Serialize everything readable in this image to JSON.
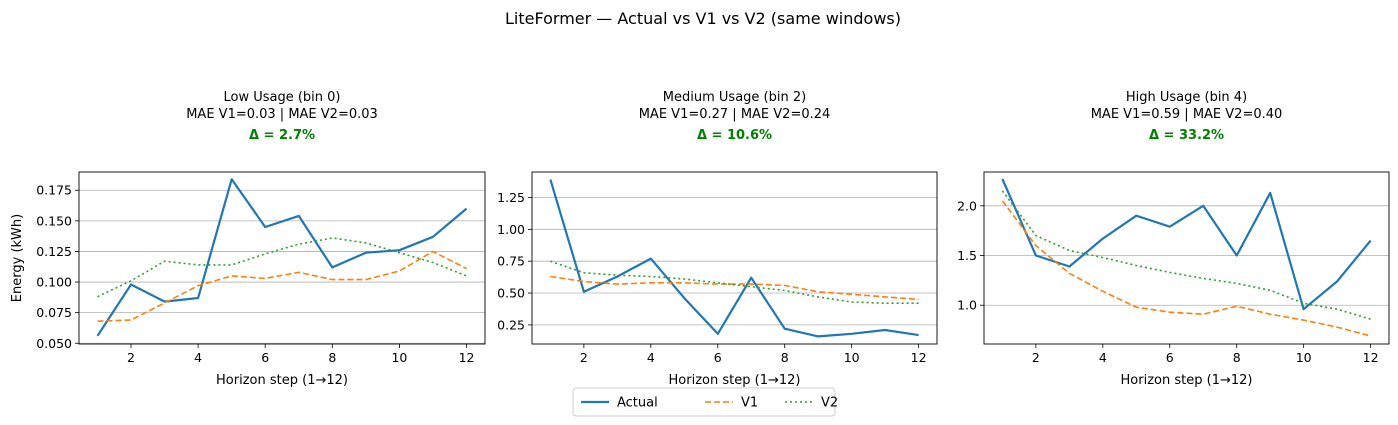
{
  "figure": {
    "suptitle": "LiteFormer — Actual vs V1 vs V2 (same windows)",
    "legend": {
      "placement": "bottom-center",
      "entries": [
        {
          "name": "Actual",
          "color": "#1f77b4",
          "dash": "solid"
        },
        {
          "name": "V1",
          "color": "#ff7f0e",
          "dash": "dashed"
        },
        {
          "name": "V2",
          "color": "#2ca02c",
          "dash": "dotted"
        }
      ]
    }
  },
  "chart_data": [
    {
      "type": "line",
      "title_line1": "Low Usage (bin 0)",
      "title_line2": "MAE V1=0.03 | MAE V2=0.03",
      "delta_label": "Δ = 2.7%",
      "delta_color": "#008000",
      "xlabel": "Horizon step (1→12)",
      "ylabel": "Energy (kWh)",
      "xlim": [
        0.45,
        12.55
      ],
      "ylim": [
        0.0494,
        0.1899
      ],
      "xticks": [
        2,
        4,
        6,
        8,
        10,
        12
      ],
      "yticks": [
        0.05,
        0.075,
        0.1,
        0.125,
        0.15,
        0.175
      ],
      "ytick_labels": [
        "0.050",
        "0.075",
        "0.100",
        "0.125",
        "0.150",
        "0.175"
      ],
      "grid": "y",
      "x": [
        1,
        2,
        3,
        4,
        5,
        6,
        7,
        8,
        9,
        10,
        11,
        12
      ],
      "series": [
        {
          "name": "Actual",
          "values": [
            0.056,
            0.098,
            0.084,
            0.087,
            0.184,
            0.145,
            0.154,
            0.112,
            0.124,
            0.126,
            0.137,
            0.16
          ]
        },
        {
          "name": "V1",
          "values": [
            0.068,
            0.069,
            0.083,
            0.097,
            0.105,
            0.103,
            0.108,
            0.102,
            0.102,
            0.109,
            0.125,
            0.111
          ]
        },
        {
          "name": "V2",
          "values": [
            0.088,
            0.101,
            0.117,
            0.114,
            0.114,
            0.123,
            0.131,
            0.136,
            0.132,
            0.124,
            0.116,
            0.105
          ]
        }
      ]
    },
    {
      "type": "line",
      "title_line1": "Medium Usage (bin 2)",
      "title_line2": "MAE V1=0.27 | MAE V2=0.24",
      "delta_label": "Δ = 10.6%",
      "delta_color": "#008000",
      "xlabel": "Horizon step (1→12)",
      "ylabel": "",
      "xlim": [
        0.45,
        12.55
      ],
      "ylim": [
        0.1,
        1.45
      ],
      "xticks": [
        2,
        4,
        6,
        8,
        10,
        12
      ],
      "yticks": [
        0.25,
        0.5,
        0.75,
        1.0,
        1.25
      ],
      "ytick_labels": [
        "0.25",
        "0.50",
        "0.75",
        "1.00",
        "1.25"
      ],
      "grid": "y",
      "x": [
        1,
        2,
        3,
        4,
        5,
        6,
        7,
        8,
        9,
        10,
        11,
        12
      ],
      "series": [
        {
          "name": "Actual",
          "values": [
            1.39,
            0.51,
            0.63,
            0.77,
            0.46,
            0.18,
            0.62,
            0.22,
            0.16,
            0.18,
            0.21,
            0.17
          ]
        },
        {
          "name": "V1",
          "values": [
            0.63,
            0.59,
            0.57,
            0.58,
            0.58,
            0.57,
            0.57,
            0.56,
            0.51,
            0.49,
            0.47,
            0.45
          ]
        },
        {
          "name": "V2",
          "values": [
            0.75,
            0.66,
            0.64,
            0.63,
            0.61,
            0.58,
            0.55,
            0.52,
            0.47,
            0.43,
            0.42,
            0.42
          ]
        }
      ]
    },
    {
      "type": "line",
      "title_line1": "High Usage (bin 4)",
      "title_line2": "MAE V1=0.59 | MAE V2=0.40",
      "delta_label": "Δ = 33.2%",
      "delta_color": "#008000",
      "xlabel": "Horizon step (1→12)",
      "ylabel": "",
      "xlim": [
        0.45,
        12.55
      ],
      "ylim": [
        0.61,
        2.34
      ],
      "xticks": [
        2,
        4,
        6,
        8,
        10,
        12
      ],
      "yticks": [
        1.0,
        1.5,
        2.0
      ],
      "ytick_labels": [
        "1.0",
        "1.5",
        "2.0"
      ],
      "grid": "y",
      "x": [
        1,
        2,
        3,
        4,
        5,
        6,
        7,
        8,
        9,
        10,
        11,
        12
      ],
      "series": [
        {
          "name": "Actual",
          "values": [
            2.27,
            1.5,
            1.39,
            1.67,
            1.9,
            1.79,
            2.0,
            1.5,
            2.13,
            0.96,
            1.24,
            1.65
          ]
        },
        {
          "name": "V1",
          "values": [
            2.05,
            1.6,
            1.32,
            1.14,
            0.98,
            0.93,
            0.91,
            0.99,
            0.91,
            0.85,
            0.78,
            0.69
          ]
        },
        {
          "name": "V2",
          "values": [
            2.15,
            1.7,
            1.55,
            1.48,
            1.4,
            1.33,
            1.27,
            1.22,
            1.15,
            1.02,
            0.96,
            0.86
          ]
        }
      ]
    }
  ]
}
